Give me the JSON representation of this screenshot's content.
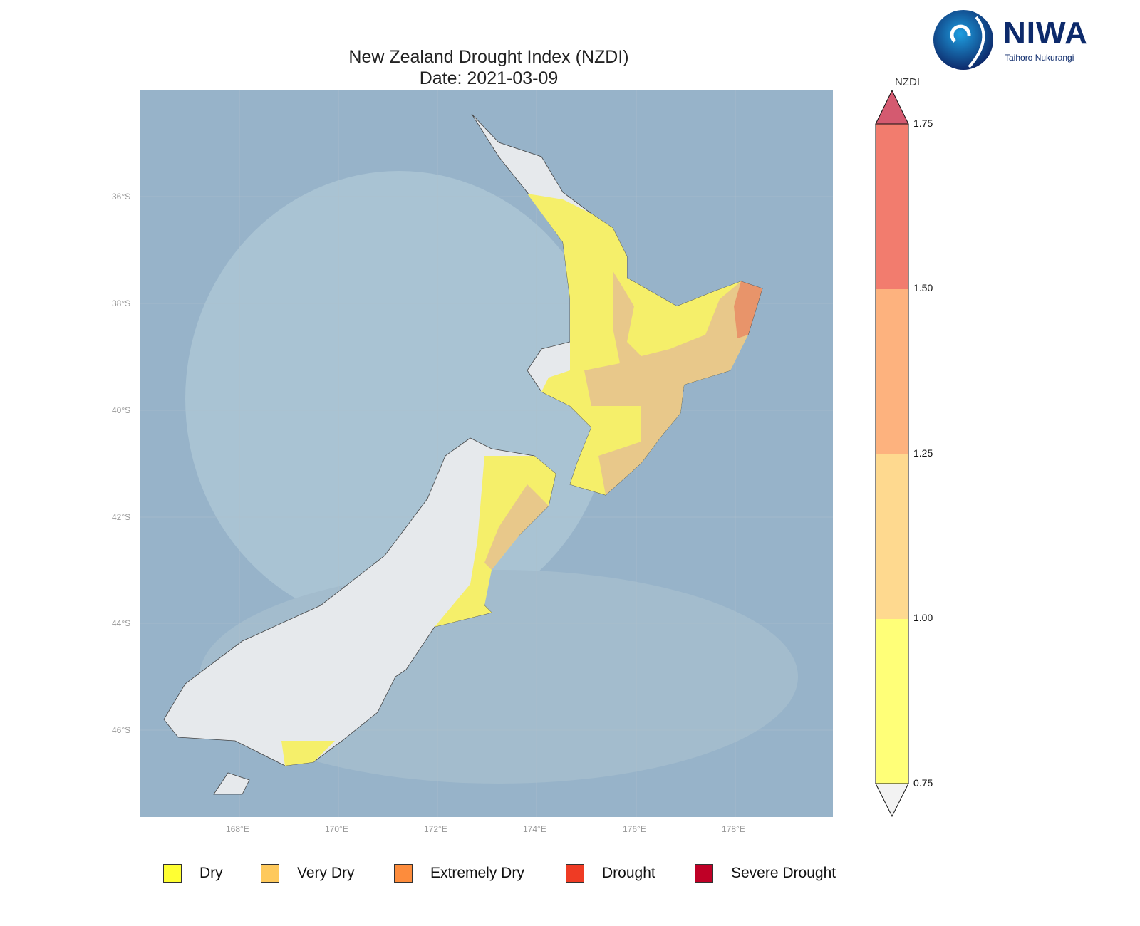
{
  "title": "New Zealand Drought Index (NZDI)",
  "subtitle": "Date: 2021-03-09",
  "logo": {
    "name": "NIWA",
    "tagline": "Taihoro Nukurangi",
    "color": "#0d2a6b"
  },
  "lat_labels": [
    "36°S",
    "38°S",
    "40°S",
    "42°S",
    "44°S",
    "46°S"
  ],
  "lon_labels": [
    "168°E",
    "170°E",
    "172°E",
    "174°E",
    "176°E",
    "178°E"
  ],
  "colorbar": {
    "label": "NZDI",
    "ticks": [
      "1.75",
      "1.50",
      "1.25",
      "1.00",
      "0.75"
    ],
    "colors": [
      "#f27c6e",
      "#fdb27e",
      "#fed98f",
      "#ffff78"
    ],
    "over_color": "#d45a70",
    "under_color": "#f2f2f2"
  },
  "legend": [
    {
      "label": "Dry",
      "color": "#ffff33"
    },
    {
      "label": "Very Dry",
      "color": "#fec95c"
    },
    {
      "label": "Extremely Dry",
      "color": "#fd8c3c"
    },
    {
      "label": "Drought",
      "color": "#ef3b24"
    },
    {
      "label": "Severe Drought",
      "color": "#bf0026"
    }
  ],
  "map_colors": {
    "ocean": "#97b3c9",
    "land": "#e6e9ec",
    "dry": "#f5ef6a",
    "very_dry": "#e8c88a",
    "extremely_dry": "#e8946a"
  }
}
